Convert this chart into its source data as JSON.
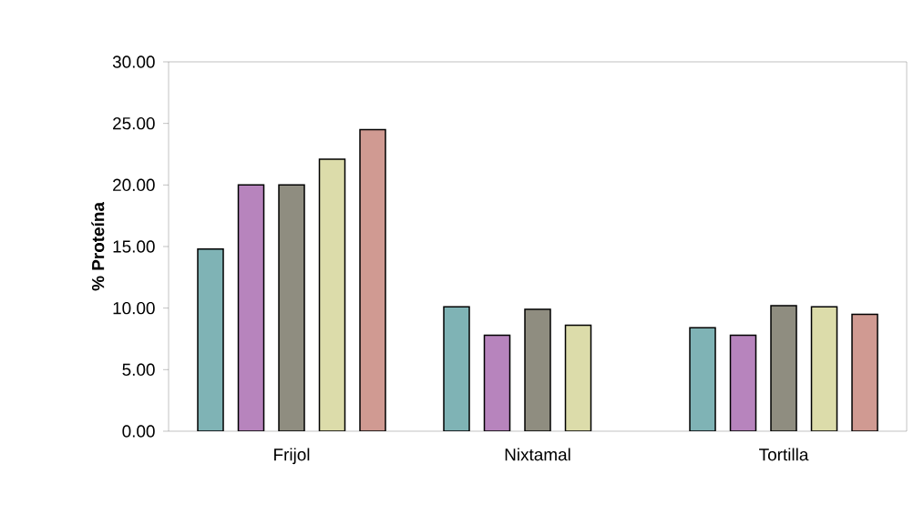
{
  "chart_data": {
    "type": "bar",
    "ylabel": "% Proteína",
    "categories": [
      "Frijol",
      "Nixtamal",
      "Tortilla"
    ],
    "series": [
      {
        "color": "#7fb3b5",
        "values": [
          14.8,
          10.1,
          8.4
        ]
      },
      {
        "color": "#b784bd",
        "values": [
          20.0,
          7.8,
          7.8
        ]
      },
      {
        "color": "#8f8d80",
        "values": [
          20.0,
          9.9,
          10.2
        ]
      },
      {
        "color": "#dcdcaa",
        "values": [
          22.1,
          8.6,
          10.1
        ]
      },
      {
        "color": "#d09a92",
        "values": [
          24.5,
          null,
          9.5
        ]
      }
    ],
    "ylim": [
      0,
      30
    ],
    "yticks": [
      {
        "value": 0,
        "label": "0.00"
      },
      {
        "value": 5,
        "label": "5.00"
      },
      {
        "value": 10,
        "label": "10.00"
      },
      {
        "value": 15,
        "label": "15.00"
      },
      {
        "value": 20,
        "label": "20.00"
      },
      {
        "value": 25,
        "label": "25.00"
      },
      {
        "value": 30,
        "label": "30.00"
      }
    ],
    "grid": false
  }
}
